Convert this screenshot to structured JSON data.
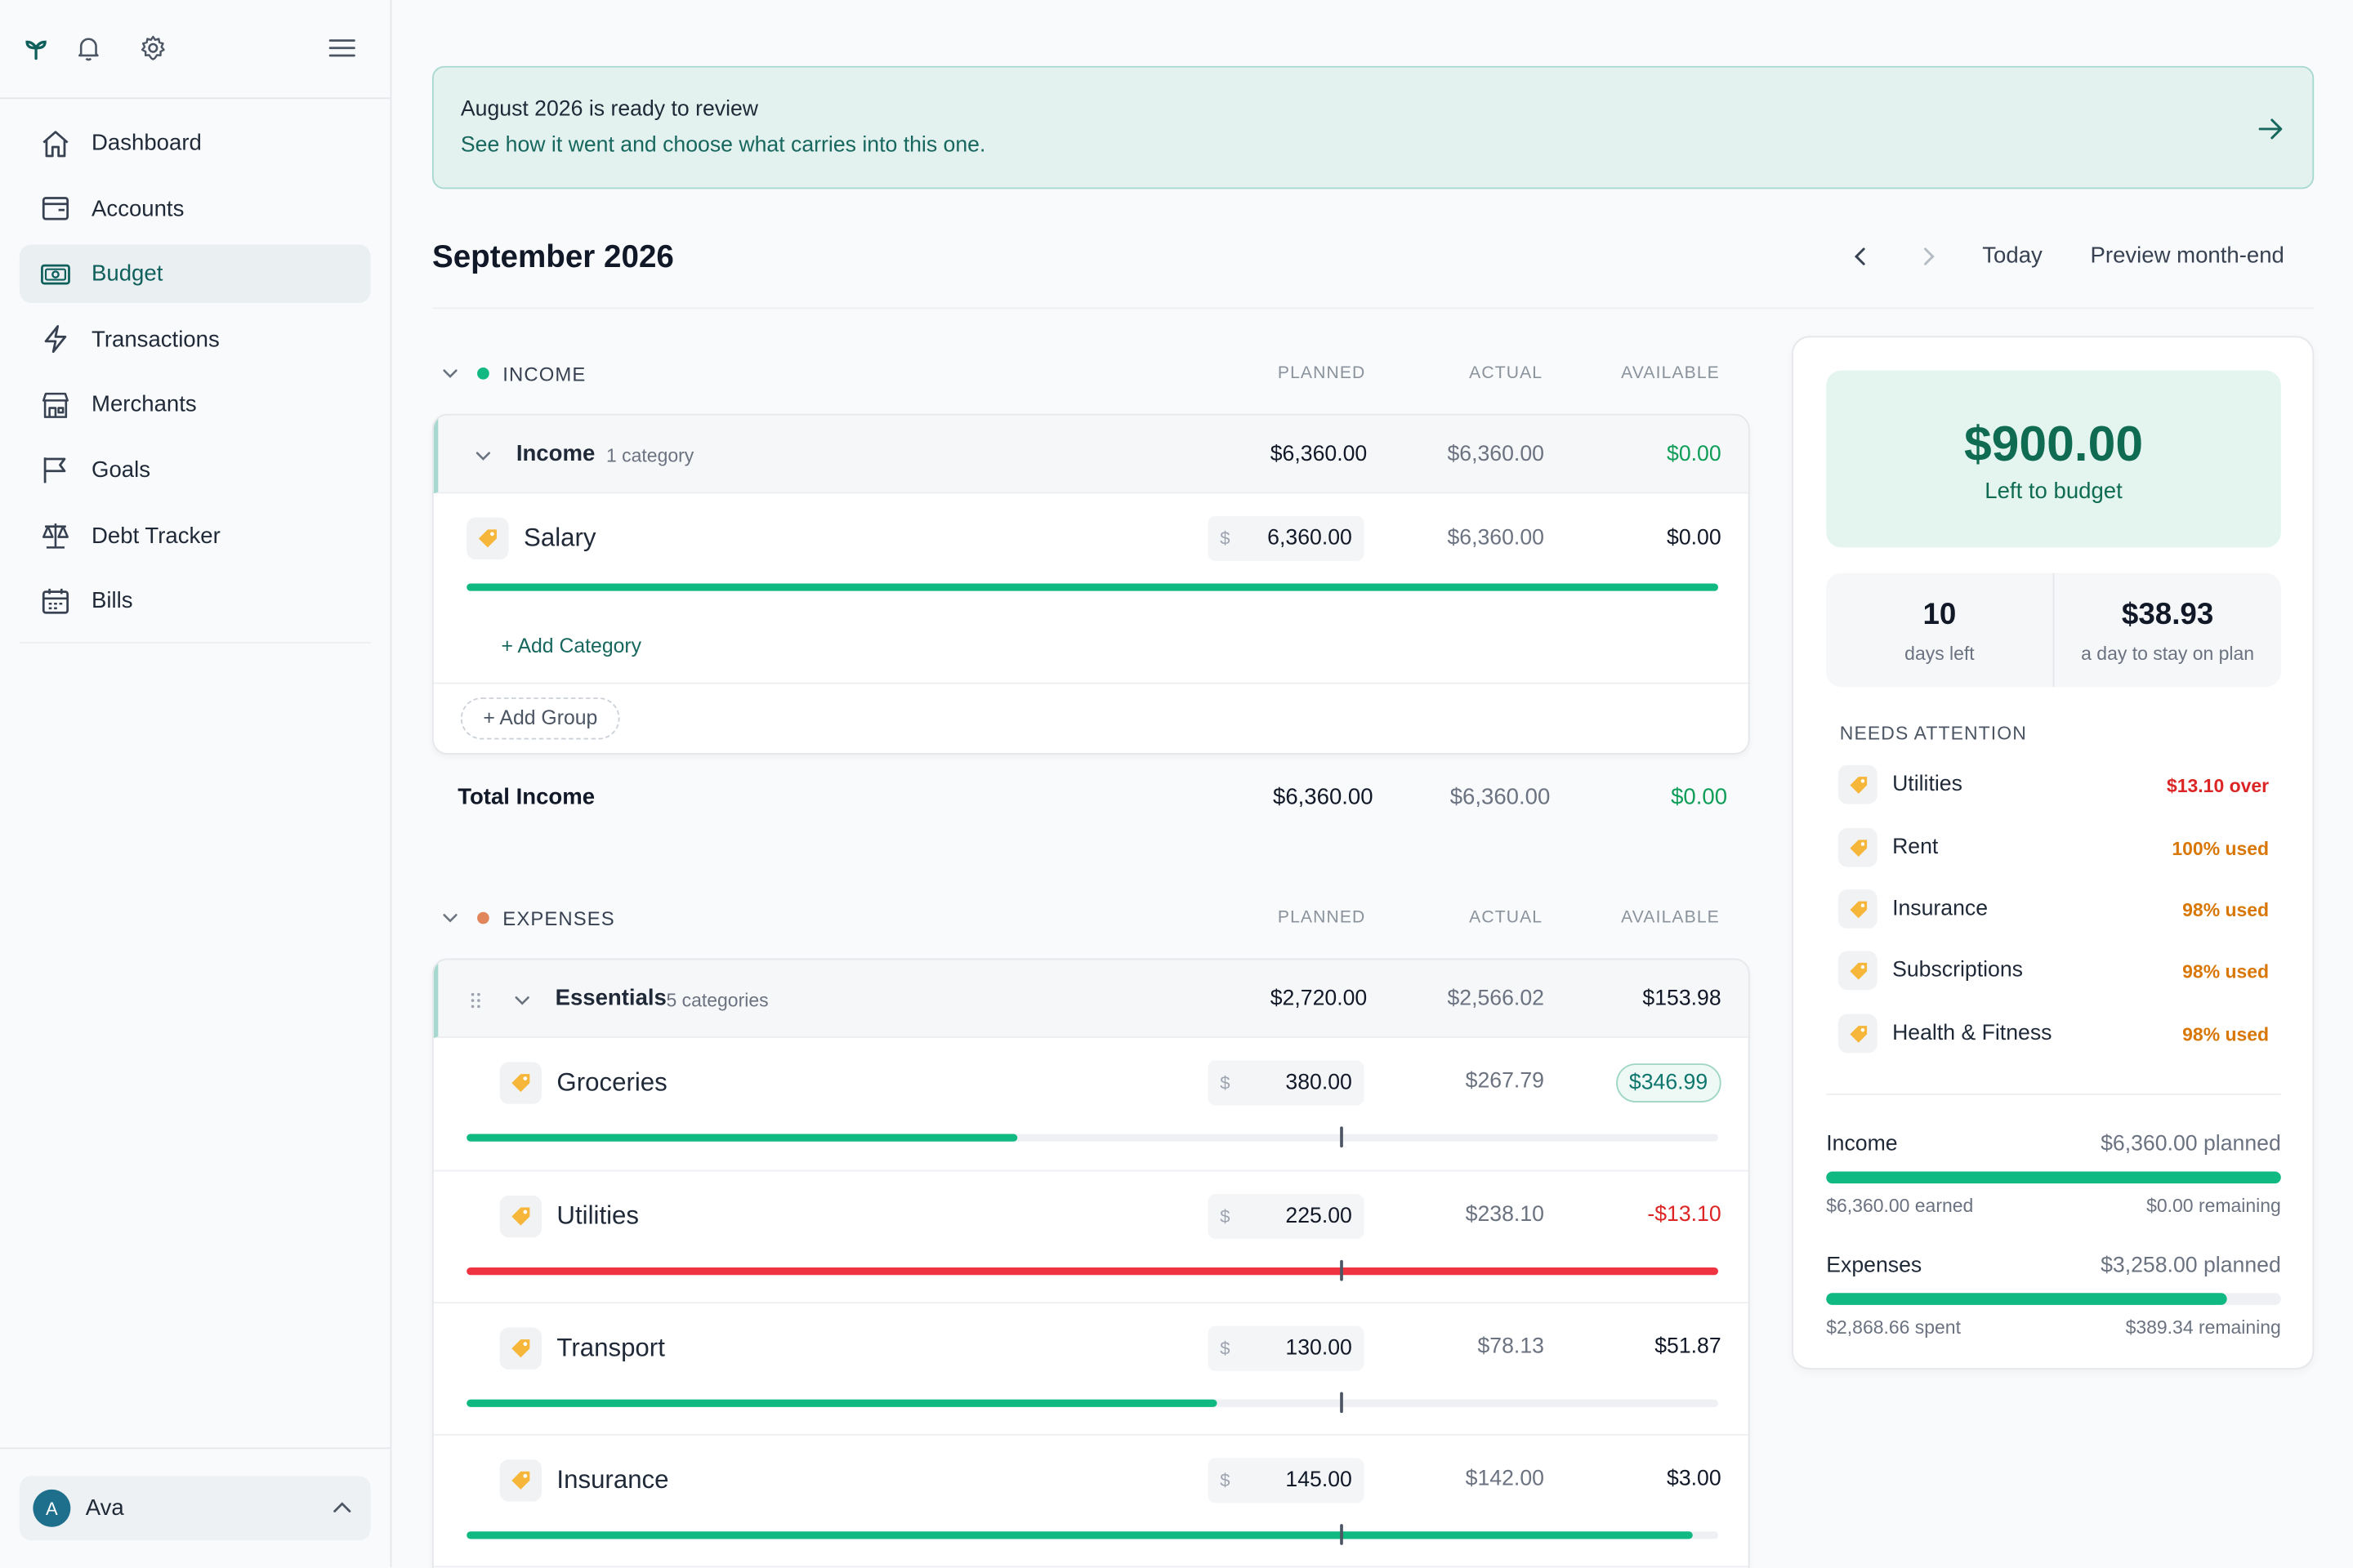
{
  "sidebar": {
    "nav": [
      {
        "label": "Dashboard",
        "icon": "home-icon"
      },
      {
        "label": "Accounts",
        "icon": "wallet-icon"
      },
      {
        "label": "Budget",
        "icon": "money-icon"
      },
      {
        "label": "Transactions",
        "icon": "bolt-icon"
      },
      {
        "label": "Merchants",
        "icon": "store-icon"
      },
      {
        "label": "Goals",
        "icon": "flag-icon"
      },
      {
        "label": "Debt Tracker",
        "icon": "scale-icon"
      },
      {
        "label": "Bills",
        "icon": "calendar-icon"
      }
    ],
    "active": "Budget",
    "user": {
      "initial": "A",
      "name": "Ava"
    }
  },
  "banner": {
    "title": "August 2026 is ready to review",
    "subtitle": "See how it went and choose what carries into this one."
  },
  "header": {
    "month": "September 2026",
    "today_label": "Today",
    "preview_label": "Preview month-end"
  },
  "columns": {
    "planned": "PLANNED",
    "actual": "ACTUAL",
    "available": "AVAILABLE"
  },
  "income": {
    "section_label": "INCOME",
    "section_color": "#10b981",
    "group": {
      "name": "Income",
      "count": "1 category",
      "planned": "$6,360.00",
      "actual": "$6,360.00",
      "available": "$0.00"
    },
    "categories": [
      {
        "name": "Salary",
        "currency": "$",
        "planned": "6,360.00",
        "actual": "$6,360.00",
        "available": "$0.00",
        "progress": 1.0
      }
    ],
    "add_category": "+ Add Category",
    "add_group": "Add Group",
    "total": {
      "label": "Total Income",
      "planned": "$6,360.00",
      "actual": "$6,360.00",
      "available": "$0.00"
    }
  },
  "expenses": {
    "section_label": "EXPENSES",
    "section_color": "#e0865a",
    "group": {
      "name": "Essentials",
      "count": "5 categories",
      "planned": "$2,720.00",
      "actual": "$2,566.02",
      "available": "$153.98"
    },
    "categories": [
      {
        "name": "Groceries",
        "currency": "$",
        "planned": "380.00",
        "actual": "$267.79",
        "available": "$346.99",
        "progress": 0.44,
        "status": "pill"
      },
      {
        "name": "Utilities",
        "currency": "$",
        "planned": "225.00",
        "actual": "$238.10",
        "available": "-$13.10",
        "progress": 1.0,
        "status": "over"
      },
      {
        "name": "Transport",
        "currency": "$",
        "planned": "130.00",
        "actual": "$78.13",
        "available": "$51.87",
        "progress": 0.6,
        "status": "ok"
      },
      {
        "name": "Insurance",
        "currency": "$",
        "planned": "145.00",
        "actual": "$142.00",
        "available": "$3.00",
        "progress": 0.98,
        "status": "ok"
      }
    ]
  },
  "panel": {
    "left_amount": "$900.00",
    "left_label": "Left to budget",
    "days_left_value": "10",
    "days_left_label": "days left",
    "per_day_value": "$38.93",
    "per_day_label": "a day to stay on plan",
    "needs_attention_label": "NEEDS ATTENTION",
    "attention": [
      {
        "name": "Utilities",
        "value": "$13.10 over",
        "color": "#dc2626"
      },
      {
        "name": "Rent",
        "value": "100% used",
        "color": "#d97706"
      },
      {
        "name": "Insurance",
        "value": "98% used",
        "color": "#d97706"
      },
      {
        "name": "Subscriptions",
        "value": "98% used",
        "color": "#d97706"
      },
      {
        "name": "Health & Fitness",
        "value": "98% used",
        "color": "#d97706"
      }
    ],
    "income_summary": {
      "title": "Income",
      "planned": "$6,360.00 planned",
      "earned": "$6,360.00 earned",
      "remaining": "$0.00 remaining",
      "progress": 1.0
    },
    "expenses_summary": {
      "title": "Expenses",
      "planned": "$3,258.00 planned",
      "spent": "$2,868.66 spent",
      "remaining": "$389.34 remaining",
      "progress": 0.88
    }
  }
}
